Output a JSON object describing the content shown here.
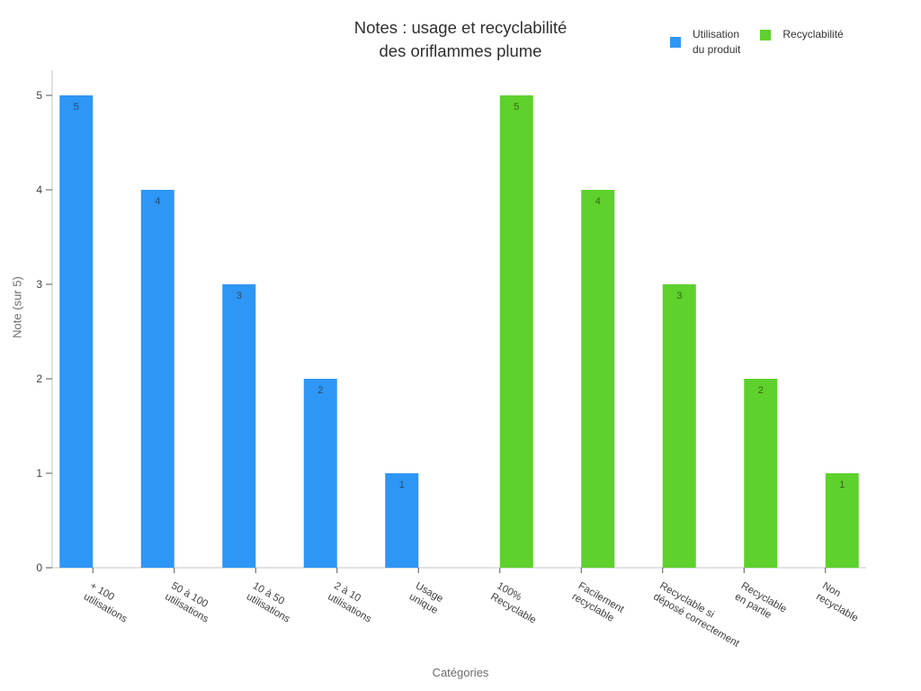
{
  "title": {
    "line1": "Notes : usage et recyclabilité",
    "line2": "des oriflammes plume"
  },
  "axes": {
    "x_title": "Catégories",
    "y_title": "Note (sur 5)"
  },
  "legend": {
    "position": "top-right",
    "items": [
      {
        "label": "Utilisation\ndu produit",
        "color": "#2e96f5"
      },
      {
        "label": "Recyclabilité",
        "color": "#5ed12d"
      }
    ]
  },
  "chart_data": {
    "type": "bar",
    "title": "Notes : usage et recyclabilité des oriflammes plume",
    "xlabel": "Catégories",
    "ylabel": "Note (sur 5)",
    "ylim": [
      0,
      5
    ],
    "yticks": [
      0,
      1,
      2,
      3,
      4,
      5
    ],
    "grid": false,
    "legend_position": "top-right",
    "bar_value_labels": "inside-top",
    "x_tick_angle_deg": 30,
    "categories": [
      "+ 100\nutilisations",
      "50 à 100\nutilisations",
      "10 à 50\nutilisations",
      "2 à 10\nutilisations",
      "Usage\nunique",
      "100%\nRecyclable",
      "Facilement\nrecyclable",
      "Recyclable si\ndéposé correctement",
      "Recyclable\nen partie",
      "Non\nrecyclable"
    ],
    "series": [
      {
        "name": "Utilisation du produit",
        "color": "#2e96f5",
        "label_color": "#2a4a6b",
        "values": [
          5,
          4,
          3,
          2,
          1,
          null,
          null,
          null,
          null,
          null
        ]
      },
      {
        "name": "Recyclabilité",
        "color": "#5ed12d",
        "label_color": "#3a6318",
        "values": [
          null,
          null,
          null,
          null,
          null,
          5,
          4,
          3,
          2,
          1
        ]
      }
    ]
  },
  "colors": {
    "background": "#ffffff",
    "axis_line": "#d8d8d8",
    "tick_mark": "#555555",
    "tick_label": "#3f3f3f",
    "axis_title": "#6b6b6b",
    "title": "#2f2f2f",
    "legend_text": "#333333"
  }
}
